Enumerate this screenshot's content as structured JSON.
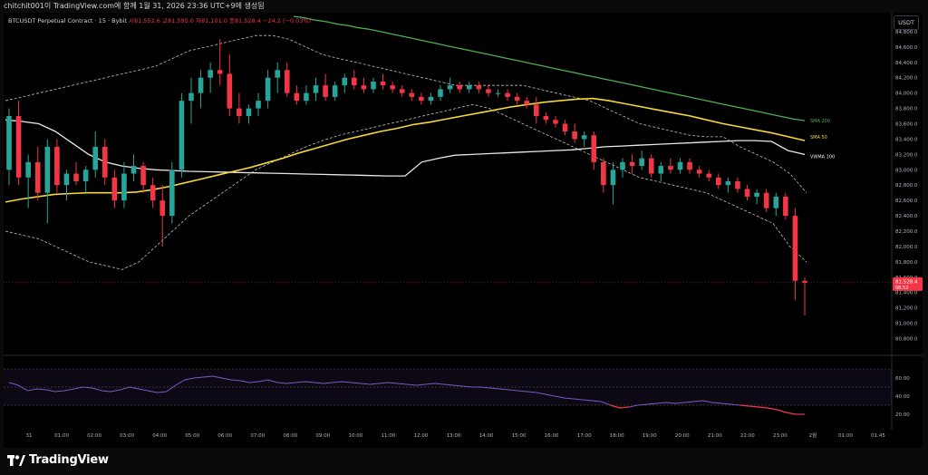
{
  "header": {
    "caption": "chitchit001이 TradingView.com에 함께 1월 31, 2026 23:36 UTC+9에 생성됨",
    "symbol_line": "BTCUSDT Perpetual Contract · 15 · Bybit",
    "ohlc_text": "시81,552.6  고81,595.0  저81,101.0  종81,528.4  −24.2 (−0.03%)",
    "currency_button": "USDT"
  },
  "branding": {
    "logo_text": "TradingView",
    "logo_icon": "tradingview-logo-icon"
  },
  "colors": {
    "bull": "#26a69a",
    "bear": "#f23645",
    "sma200": "#4caf50",
    "sma50": "#f5d738",
    "vwma": "#e8e8e8",
    "bollinger": "#bfbfbf",
    "rsi": "#7e57c2",
    "background": "#000000",
    "text": "#d1d4dc"
  },
  "chart_data": [
    {
      "type": "candlestick",
      "symbol": "BTCUSDT Perpetual Contract",
      "interval": "15",
      "exchange": "Bybit",
      "y_axis_ticks": [
        "84,800.0",
        "84,600.0",
        "84,400.0",
        "84,200.0",
        "84,000.0",
        "83,800.0",
        "83,600.0",
        "83,400.0",
        "83,200.0",
        "83,000.0",
        "82,800.0",
        "82,600.0",
        "82,400.0",
        "82,200.0",
        "82,000.0",
        "81,800.0",
        "81,600.0",
        "81,400.0",
        "81,200.0",
        "81,000.0",
        "80,800.0"
      ],
      "x_axis_ticks": [
        "31",
        "01:00",
        "02:00",
        "03:00",
        "04:00",
        "05:00",
        "06:00",
        "07:00",
        "08:00",
        "09:00",
        "10:00",
        "11:00",
        "12:00",
        "13:00",
        "14:00",
        "15:00",
        "16:00",
        "17:00",
        "18:00",
        "19:00",
        "20:00",
        "21:00",
        "22:00",
        "23:00",
        "2월",
        "01:00",
        "01:45"
      ],
      "ylim": [
        80700,
        85000
      ],
      "last_price_label": "81,528.4",
      "countdown_label": "08:52",
      "candles": [
        {
          "o": 83000,
          "h": 83800,
          "l": 82800,
          "c": 83700
        },
        {
          "o": 83700,
          "h": 83900,
          "l": 82800,
          "c": 82900
        },
        {
          "o": 82900,
          "h": 83200,
          "l": 82500,
          "c": 83100
        },
        {
          "o": 83100,
          "h": 83300,
          "l": 82600,
          "c": 82700
        },
        {
          "o": 82700,
          "h": 83400,
          "l": 82300,
          "c": 83300
        },
        {
          "o": 83300,
          "h": 83400,
          "l": 82700,
          "c": 82800
        },
        {
          "o": 82800,
          "h": 83000,
          "l": 82600,
          "c": 82950
        },
        {
          "o": 82950,
          "h": 83100,
          "l": 82800,
          "c": 82850
        },
        {
          "o": 82850,
          "h": 83050,
          "l": 82700,
          "c": 83000
        },
        {
          "o": 83000,
          "h": 83500,
          "l": 82900,
          "c": 83300
        },
        {
          "o": 83300,
          "h": 83400,
          "l": 82800,
          "c": 82900
        },
        {
          "o": 82900,
          "h": 83000,
          "l": 82500,
          "c": 82600
        },
        {
          "o": 82600,
          "h": 83100,
          "l": 82500,
          "c": 82950
        },
        {
          "o": 82950,
          "h": 83200,
          "l": 82850,
          "c": 83050
        },
        {
          "o": 83050,
          "h": 83100,
          "l": 82700,
          "c": 82800
        },
        {
          "o": 82800,
          "h": 82900,
          "l": 82500,
          "c": 82600
        },
        {
          "o": 82600,
          "h": 82800,
          "l": 82000,
          "c": 82400
        },
        {
          "o": 82400,
          "h": 83100,
          "l": 82300,
          "c": 83000
        },
        {
          "o": 83000,
          "h": 84000,
          "l": 82900,
          "c": 83900
        },
        {
          "o": 83900,
          "h": 84200,
          "l": 83600,
          "c": 84000
        },
        {
          "o": 84000,
          "h": 84300,
          "l": 83800,
          "c": 84200
        },
        {
          "o": 84200,
          "h": 84400,
          "l": 84000,
          "c": 84300
        },
        {
          "o": 84300,
          "h": 84700,
          "l": 84100,
          "c": 84250
        },
        {
          "o": 84250,
          "h": 84500,
          "l": 83700,
          "c": 83800
        },
        {
          "o": 83800,
          "h": 84000,
          "l": 83600,
          "c": 83700
        },
        {
          "o": 83700,
          "h": 83850,
          "l": 83600,
          "c": 83800
        },
        {
          "o": 83800,
          "h": 84000,
          "l": 83700,
          "c": 83900
        },
        {
          "o": 83900,
          "h": 84300,
          "l": 83800,
          "c": 84200
        },
        {
          "o": 84200,
          "h": 84400,
          "l": 84000,
          "c": 84300
        },
        {
          "o": 84300,
          "h": 84400,
          "l": 83950,
          "c": 84000
        },
        {
          "o": 84000,
          "h": 84100,
          "l": 83850,
          "c": 83900
        },
        {
          "o": 83900,
          "h": 84100,
          "l": 83850,
          "c": 84000
        },
        {
          "o": 84000,
          "h": 84200,
          "l": 83900,
          "c": 84100
        },
        {
          "o": 84100,
          "h": 84250,
          "l": 83900,
          "c": 83950
        },
        {
          "o": 83950,
          "h": 84150,
          "l": 83900,
          "c": 84100
        },
        {
          "o": 84100,
          "h": 84250,
          "l": 84000,
          "c": 84200
        },
        {
          "o": 84200,
          "h": 84300,
          "l": 84050,
          "c": 84100
        },
        {
          "o": 84100,
          "h": 84200,
          "l": 84000,
          "c": 84050
        },
        {
          "o": 84050,
          "h": 84200,
          "l": 84000,
          "c": 84150
        },
        {
          "o": 84150,
          "h": 84250,
          "l": 84050,
          "c": 84100
        },
        {
          "o": 84100,
          "h": 84150,
          "l": 84000,
          "c": 84050
        },
        {
          "o": 84050,
          "h": 84100,
          "l": 83950,
          "c": 84000
        },
        {
          "o": 84000,
          "h": 84050,
          "l": 83900,
          "c": 83950
        },
        {
          "o": 83950,
          "h": 84000,
          "l": 83850,
          "c": 83900
        },
        {
          "o": 83900,
          "h": 84000,
          "l": 83850,
          "c": 83950
        },
        {
          "o": 83950,
          "h": 84100,
          "l": 83900,
          "c": 84050
        },
        {
          "o": 84050,
          "h": 84200,
          "l": 84000,
          "c": 84100
        },
        {
          "o": 84100,
          "h": 84150,
          "l": 84000,
          "c": 84050
        },
        {
          "o": 84050,
          "h": 84150,
          "l": 84000,
          "c": 84100
        },
        {
          "o": 84100,
          "h": 84150,
          "l": 84000,
          "c": 84050
        },
        {
          "o": 84050,
          "h": 84100,
          "l": 83950,
          "c": 84000
        },
        {
          "o": 84000,
          "h": 84050,
          "l": 83950,
          "c": 84000
        },
        {
          "o": 84000,
          "h": 84050,
          "l": 83900,
          "c": 83950
        },
        {
          "o": 83950,
          "h": 84000,
          "l": 83850,
          "c": 83900
        },
        {
          "o": 83900,
          "h": 83950,
          "l": 83800,
          "c": 83850
        },
        {
          "o": 83850,
          "h": 83950,
          "l": 83600,
          "c": 83700
        },
        {
          "o": 83700,
          "h": 83750,
          "l": 83600,
          "c": 83650
        },
        {
          "o": 83650,
          "h": 83700,
          "l": 83550,
          "c": 83600
        },
        {
          "o": 83600,
          "h": 83650,
          "l": 83450,
          "c": 83500
        },
        {
          "o": 83500,
          "h": 83600,
          "l": 83350,
          "c": 83400
        },
        {
          "o": 83400,
          "h": 83500,
          "l": 83300,
          "c": 83450
        },
        {
          "o": 83450,
          "h": 83500,
          "l": 83000,
          "c": 83100
        },
        {
          "o": 83100,
          "h": 83150,
          "l": 82700,
          "c": 82800
        },
        {
          "o": 82800,
          "h": 83100,
          "l": 82550,
          "c": 83000
        },
        {
          "o": 83000,
          "h": 83150,
          "l": 82900,
          "c": 83100
        },
        {
          "o": 83100,
          "h": 83200,
          "l": 82950,
          "c": 83050
        },
        {
          "o": 83050,
          "h": 83250,
          "l": 83000,
          "c": 83150
        },
        {
          "o": 83150,
          "h": 83200,
          "l": 82900,
          "c": 82950
        },
        {
          "o": 82950,
          "h": 83100,
          "l": 82850,
          "c": 83050
        },
        {
          "o": 83050,
          "h": 83150,
          "l": 82950,
          "c": 83000
        },
        {
          "o": 83000,
          "h": 83150,
          "l": 82950,
          "c": 83100
        },
        {
          "o": 83100,
          "h": 83150,
          "l": 82950,
          "c": 83000
        },
        {
          "o": 83000,
          "h": 83050,
          "l": 82900,
          "c": 82950
        },
        {
          "o": 82950,
          "h": 83000,
          "l": 82850,
          "c": 82900
        },
        {
          "o": 82900,
          "h": 82950,
          "l": 82750,
          "c": 82800
        },
        {
          "o": 82800,
          "h": 82900,
          "l": 82700,
          "c": 82850
        },
        {
          "o": 82850,
          "h": 82900,
          "l": 82700,
          "c": 82750
        },
        {
          "o": 82750,
          "h": 82800,
          "l": 82600,
          "c": 82650
        },
        {
          "o": 82650,
          "h": 82750,
          "l": 82550,
          "c": 82700
        },
        {
          "o": 82700,
          "h": 82750,
          "l": 82450,
          "c": 82500
        },
        {
          "o": 82500,
          "h": 82700,
          "l": 82400,
          "c": 82650
        },
        {
          "o": 82650,
          "h": 82700,
          "l": 82350,
          "c": 82400
        },
        {
          "o": 82400,
          "h": 82500,
          "l": 81300,
          "c": 81552.6
        },
        {
          "o": 81552.6,
          "h": 81595.0,
          "l": 81101.0,
          "c": 81528.4
        }
      ],
      "indicators": [
        {
          "name": "SMA 200",
          "values": [
            85000,
            84980,
            84950,
            84930,
            84900,
            84880,
            84850,
            84830,
            84800,
            84770,
            84740,
            84710,
            84680,
            84650,
            84620,
            84590,
            84560,
            84530,
            84500,
            84470,
            84440,
            84410,
            84380,
            84350,
            84320,
            84290,
            84260,
            84230,
            84200,
            84170,
            84140,
            84110,
            84080,
            84050,
            84020,
            83990,
            83960,
            83930,
            83900,
            83870,
            83840,
            83810,
            83780,
            83750,
            83720,
            83690,
            83660,
            83640
          ]
        },
        {
          "name": "SMA 50",
          "values": [
            82580,
            82620,
            82650,
            82680,
            82690,
            82700,
            82700,
            82700,
            82710,
            82740,
            82780,
            82830,
            82880,
            82930,
            82980,
            83030,
            83090,
            83150,
            83220,
            83280,
            83340,
            83400,
            83450,
            83500,
            83540,
            83590,
            83620,
            83660,
            83700,
            83740,
            83780,
            83820,
            83850,
            83880,
            83900,
            83920,
            83930,
            83900,
            83860,
            83820,
            83780,
            83740,
            83700,
            83650,
            83600,
            83560,
            83520,
            83480,
            83430,
            83380
          ]
        },
        {
          "name": "VWMA 100",
          "values": [
            83650,
            83630,
            83600,
            83500,
            83350,
            83200,
            83100,
            83050,
            83020,
            83000,
            82990,
            82980,
            82975,
            82970,
            82965,
            82960,
            82955,
            82950,
            82945,
            82940,
            82935,
            82930,
            82925,
            82920,
            82920,
            83100,
            83150,
            83190,
            83200,
            83210,
            83220,
            83230,
            83240,
            83250,
            83260,
            83280,
            83300,
            83310,
            83320,
            83330,
            83340,
            83350,
            83360,
            83370,
            83380,
            83380,
            83370,
            83250,
            83200
          ]
        }
      ],
      "band_upper": [
        83900,
        83950,
        84000,
        84050,
        84100,
        84150,
        84200,
        84250,
        84300,
        84350,
        84450,
        84550,
        84600,
        84650,
        84700,
        84750,
        84750,
        84700,
        84600,
        84500,
        84450,
        84400,
        84350,
        84300,
        84250,
        84200,
        84150,
        84100,
        84100,
        84100,
        84100,
        84100,
        84050,
        84000,
        83950,
        83900,
        83800,
        83700,
        83600,
        83550,
        83500,
        83450,
        83430,
        83430,
        83300,
        83200,
        83100,
        82950,
        82700
      ],
      "band_lower": [
        82200,
        82150,
        82100,
        82000,
        81900,
        81800,
        81750,
        81700,
        81800,
        82000,
        82200,
        82400,
        82550,
        82700,
        82850,
        83000,
        83100,
        83200,
        83300,
        83380,
        83450,
        83500,
        83550,
        83600,
        83650,
        83700,
        83750,
        83800,
        83850,
        83800,
        83700,
        83600,
        83500,
        83400,
        83300,
        83200,
        83100,
        83000,
        82900,
        82850,
        82800,
        82750,
        82700,
        82600,
        82500,
        82400,
        82300,
        82000,
        81800
      ],
      "series_labels": [
        "SMA 200",
        "SMA 50",
        "VWMA 100"
      ]
    },
    {
      "type": "line",
      "panel": "oscillator",
      "y_axis_ticks": [
        "60.00",
        "40.00",
        "20.00"
      ],
      "ylim": [
        15,
        75
      ],
      "bands": [
        70,
        50,
        30
      ],
      "values": [
        55,
        52,
        46,
        48,
        47,
        45,
        46,
        48,
        50,
        49,
        46,
        45,
        47,
        50,
        48,
        46,
        44,
        45,
        52,
        58,
        60,
        61,
        62,
        60,
        58,
        57,
        55,
        56,
        58,
        55,
        54,
        55,
        56,
        55,
        54,
        55,
        56,
        55,
        54,
        53,
        54,
        55,
        54,
        53,
        52,
        53,
        54,
        53,
        52,
        51,
        50,
        50,
        49,
        48,
        47,
        46,
        45,
        44,
        42,
        40,
        38,
        37,
        36,
        35,
        34,
        30,
        27,
        28,
        30,
        31,
        32,
        33,
        32,
        33,
        34,
        35,
        33,
        32,
        31,
        30,
        29,
        28,
        27,
        25,
        22,
        20,
        20
      ]
    }
  ]
}
